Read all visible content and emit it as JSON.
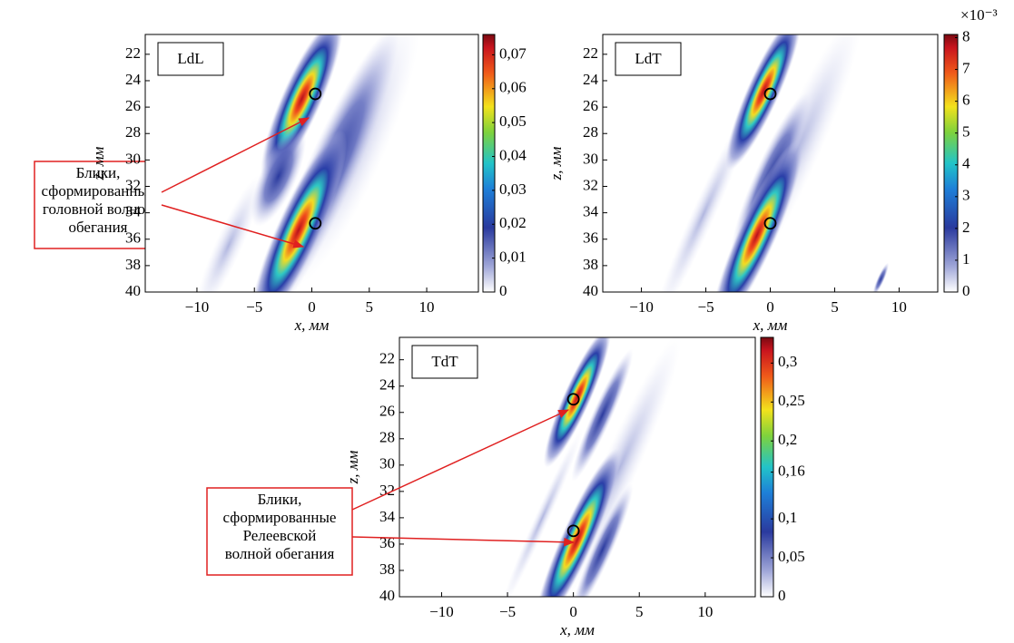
{
  "chart_data": [
    {
      "type": "heatmap",
      "label": "LdL",
      "xlabel": "x, мм",
      "ylabel": "z, мм",
      "xlim": [
        -14.5,
        14.5
      ],
      "xticks": [
        {
          "value": -10,
          "label": "−10"
        },
        {
          "value": -5,
          "label": "−5"
        },
        0,
        5,
        10
      ],
      "ylim": [
        20.5,
        40
      ],
      "yticks": [
        22,
        24,
        26,
        28,
        30,
        32,
        34,
        36,
        38,
        40
      ],
      "clim": [
        0,
        0.076
      ],
      "cticks": [
        0,
        {
          "value": 0.01,
          "label": "0,01"
        },
        {
          "value": 0.02,
          "label": "0,02"
        },
        {
          "value": 0.03,
          "label": "0,03"
        },
        {
          "value": 0.04,
          "label": "0,04"
        },
        {
          "value": 0.05,
          "label": "0,05"
        },
        {
          "value": 0.06,
          "label": "0,06"
        },
        {
          "value": 0.07,
          "label": "0,07"
        }
      ],
      "points": {
        "x": [
          0.3,
          0.3
        ],
        "y": [
          25,
          34.8
        ]
      }
    },
    {
      "type": "heatmap",
      "label": "LdT",
      "xlabel": "x, мм",
      "ylabel": "z, мм",
      "xlim": [
        -13,
        13
      ],
      "xticks": [
        {
          "value": -10,
          "label": "−10"
        },
        {
          "value": -5,
          "label": "−5"
        },
        0,
        5,
        10
      ],
      "ylim": [
        20.5,
        40
      ],
      "yticks": [
        22,
        24,
        26,
        28,
        30,
        32,
        34,
        36,
        38,
        40
      ],
      "clim": [
        0,
        8.1
      ],
      "cticks": [
        0,
        1,
        2,
        3,
        4,
        5,
        6,
        7,
        8
      ],
      "colorbar_multiplier": "×10⁻³",
      "points": {
        "x": [
          0,
          0
        ],
        "y": [
          25,
          34.8
        ]
      }
    },
    {
      "type": "heatmap",
      "label": "TdT",
      "xlabel": "x, мм",
      "ylabel": "z, мм",
      "xlim": [
        -13.2,
        13.8
      ],
      "xticks": [
        {
          "value": -10,
          "label": "−10"
        },
        {
          "value": -5,
          "label": "−5"
        },
        0,
        5,
        10
      ],
      "ylim": [
        20.3,
        40
      ],
      "yticks": [
        22,
        24,
        26,
        28,
        30,
        32,
        34,
        36,
        38,
        40
      ],
      "clim": [
        0,
        0.333
      ],
      "cticks": [
        0,
        {
          "value": 0.05,
          "label": "0,05"
        },
        {
          "value": 0.1,
          "label": "0,1"
        },
        {
          "value": 0.16,
          "label": "0,16"
        },
        {
          "value": 0.2,
          "label": "0,2"
        },
        {
          "value": 0.25,
          "label": "0,25"
        },
        {
          "value": 0.3,
          "label": "0,3"
        }
      ],
      "points": {
        "x": [
          0,
          0
        ],
        "y": [
          25,
          35
        ]
      }
    }
  ],
  "annotations": [
    {
      "lines": [
        "Блики,",
        "сформированные",
        "головной волной",
        "обегания"
      ]
    },
    {
      "lines": [
        "Блики,",
        "сформированные",
        "Релеевской",
        "волной обегания"
      ]
    }
  ]
}
